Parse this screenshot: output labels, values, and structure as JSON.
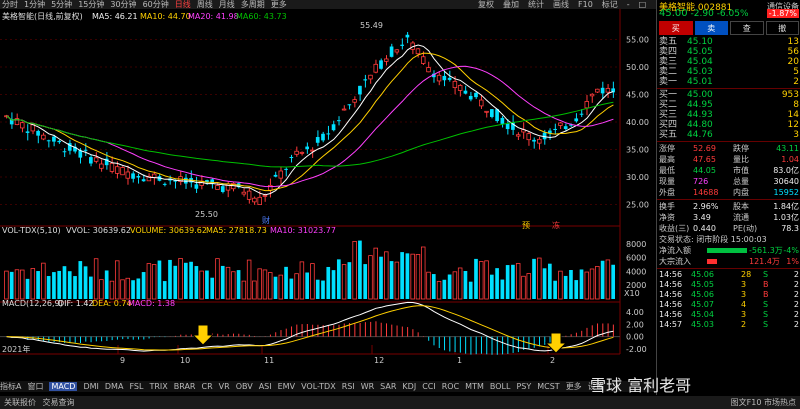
{
  "periods": [
    "分时",
    "1分钟",
    "5分钟",
    "15分钟",
    "30分钟",
    "60分钟",
    "日线",
    "周线",
    "月线",
    "多周期",
    "更多"
  ],
  "active_period": "日线",
  "tools": [
    "复权",
    "叠加",
    "统计",
    "画线",
    "F10",
    "标记",
    "-",
    "□",
    "✕"
  ],
  "legend": {
    "title": "美格智能(日线,前复权)",
    "ma5": "MA5: 46.21",
    "ma10": "MA10: 44.70",
    "ma20": "MA20: 41.98",
    "ma60": "MA60: 43.73"
  },
  "price_axis": [
    "55.00",
    "50.00",
    "45.00",
    "40.00",
    "35.00",
    "30.00",
    "25.00"
  ],
  "annotations": {
    "high": "55.49",
    "low": "25.50",
    "markers": [
      "财",
      "预",
      "冻"
    ]
  },
  "volume_legend": {
    "title": "VOL-TDX(5,10)",
    "vvol": "VVOL: 30639.62",
    "volume": "VOLUME: 30639.62",
    "ma5": "MA5: 27818.73",
    "ma10": "MA10: 31023.77",
    "unit": "X10"
  },
  "volume_axis": [
    "8000",
    "6000",
    "4000",
    "2000"
  ],
  "macd_legend": {
    "title": "MACD(12,26,9)",
    "dif": "DIF: 1.42",
    "dea": "DEA: 0.74",
    "macd": "MACD: 1.38"
  },
  "macd_axis": [
    "4.00",
    "2.00",
    "0.00",
    "-2.00"
  ],
  "x_axis": {
    "year": "2021年",
    "months": [
      "9",
      "10",
      "11",
      "12",
      "1",
      "2"
    ]
  },
  "bottom_tabs": [
    "指标A",
    "窗口",
    "MACD",
    "DMI",
    "DMA",
    "FSL",
    "TRIX",
    "BRAR",
    "CR",
    "VR",
    "OBV",
    "ASI",
    "EMV",
    "VOL-TDX",
    "RSI",
    "WR",
    "SAR",
    "KDJ",
    "CCI",
    "ROC",
    "MTM",
    "BOLL",
    "PSY",
    "MCST",
    "更多",
    "设置"
  ],
  "active_tab": "MACD",
  "stock": {
    "name": "美格智能",
    "code": "002881",
    "price": "45.00",
    "change": "-2.90",
    "pct": "-6.05%",
    "broker": "通信设备",
    "badge": "-1.87%"
  },
  "trade_buttons": [
    "买",
    "卖",
    "查",
    "撤"
  ],
  "sell_orders": [
    {
      "label": "卖五",
      "price": "45.10",
      "vol": "13"
    },
    {
      "label": "卖四",
      "price": "45.05",
      "vol": "56"
    },
    {
      "label": "卖三",
      "price": "45.04",
      "vol": "20"
    },
    {
      "label": "卖二",
      "price": "45.03",
      "vol": "5"
    },
    {
      "label": "卖一",
      "price": "45.01",
      "vol": "2"
    }
  ],
  "buy_orders": [
    {
      "label": "买一",
      "price": "45.00",
      "vol": "953"
    },
    {
      "label": "买二",
      "price": "44.95",
      "vol": "8"
    },
    {
      "label": "买三",
      "price": "44.93",
      "vol": "14"
    },
    {
      "label": "买四",
      "price": "44.80",
      "vol": "12"
    },
    {
      "label": "买五",
      "price": "44.76",
      "vol": "3"
    }
  ],
  "stats": [
    {
      "l1": "涨停",
      "v1": "52.69",
      "l2": "跌停",
      "v2": "43.11"
    },
    {
      "l1": "最高",
      "v1": "47.65",
      "l2": "量比",
      "v2": "1.04"
    },
    {
      "l1": "最低",
      "v1": "44.05",
      "l2": "市值",
      "v2": "83.0亿"
    },
    {
      "l1": "现量",
      "v1": "726",
      "l2": "总量",
      "v2": "30640"
    },
    {
      "l1": "外盘",
      "v1": "14688",
      "l2": "内盘",
      "v2": "15952"
    }
  ],
  "stats2": [
    {
      "l1": "换手",
      "v1": "2.96%",
      "l2": "股本",
      "v2": "1.84亿"
    },
    {
      "l1": "净资",
      "v1": "3.49",
      "l2": "流通",
      "v2": "1.03亿"
    },
    {
      "l1": "收益(三)",
      "v1": "0.440",
      "l2": "PE(动)",
      "v2": "78.3"
    }
  ],
  "trade_status": "交易状态: 闭市阶段 15:00:03",
  "flows": [
    {
      "label": "净流入额",
      "value": "-561.3万",
      "pct": "-4%"
    },
    {
      "label": "大宗流入",
      "value": "121.4万",
      "pct": "1%"
    }
  ],
  "ticks": [
    {
      "time": "14:56",
      "price": "45.06",
      "vol": "28",
      "side": "S",
      "n": "2"
    },
    {
      "time": "14:56",
      "price": "45.05",
      "vol": "3",
      "side": "B",
      "n": "2"
    },
    {
      "time": "14:56",
      "price": "45.06",
      "vol": "3",
      "side": "B",
      "n": "2"
    },
    {
      "time": "14:56",
      "price": "45.07",
      "vol": "4",
      "side": "S",
      "n": "2"
    },
    {
      "time": "14:56",
      "price": "45.04",
      "vol": "3",
      "side": "S",
      "n": "2"
    },
    {
      "time": "14:57",
      "price": "45.03",
      "vol": "2",
      "side": "S",
      "n": "2"
    }
  ],
  "status_bar": [
    "关联报价",
    "交易查询"
  ],
  "status_right": "图文F10  市场热点",
  "watermark": "雪球  富利老哥",
  "colors": {
    "up": "#ff3b3b",
    "down": "#00e0ff",
    "ma5": "#ffffff",
    "ma10": "#ffd000",
    "ma20": "#ff40ff",
    "ma60": "#00c000"
  }
}
